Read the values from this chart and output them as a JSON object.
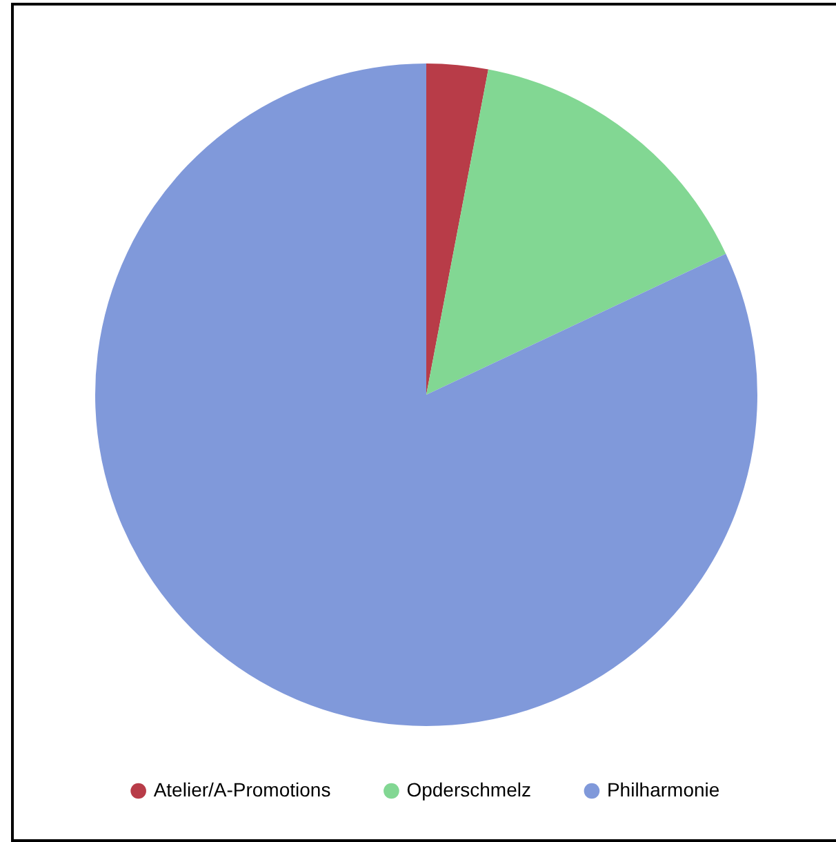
{
  "chart_data": {
    "type": "pie",
    "categories": [
      "Atelier/A-Promotions",
      "Opderschmelz",
      "Philharmonie"
    ],
    "values": [
      3,
      15,
      82
    ],
    "colors": [
      "#b83c48",
      "#82d793",
      "#8099da"
    ],
    "legend": "bottom"
  }
}
